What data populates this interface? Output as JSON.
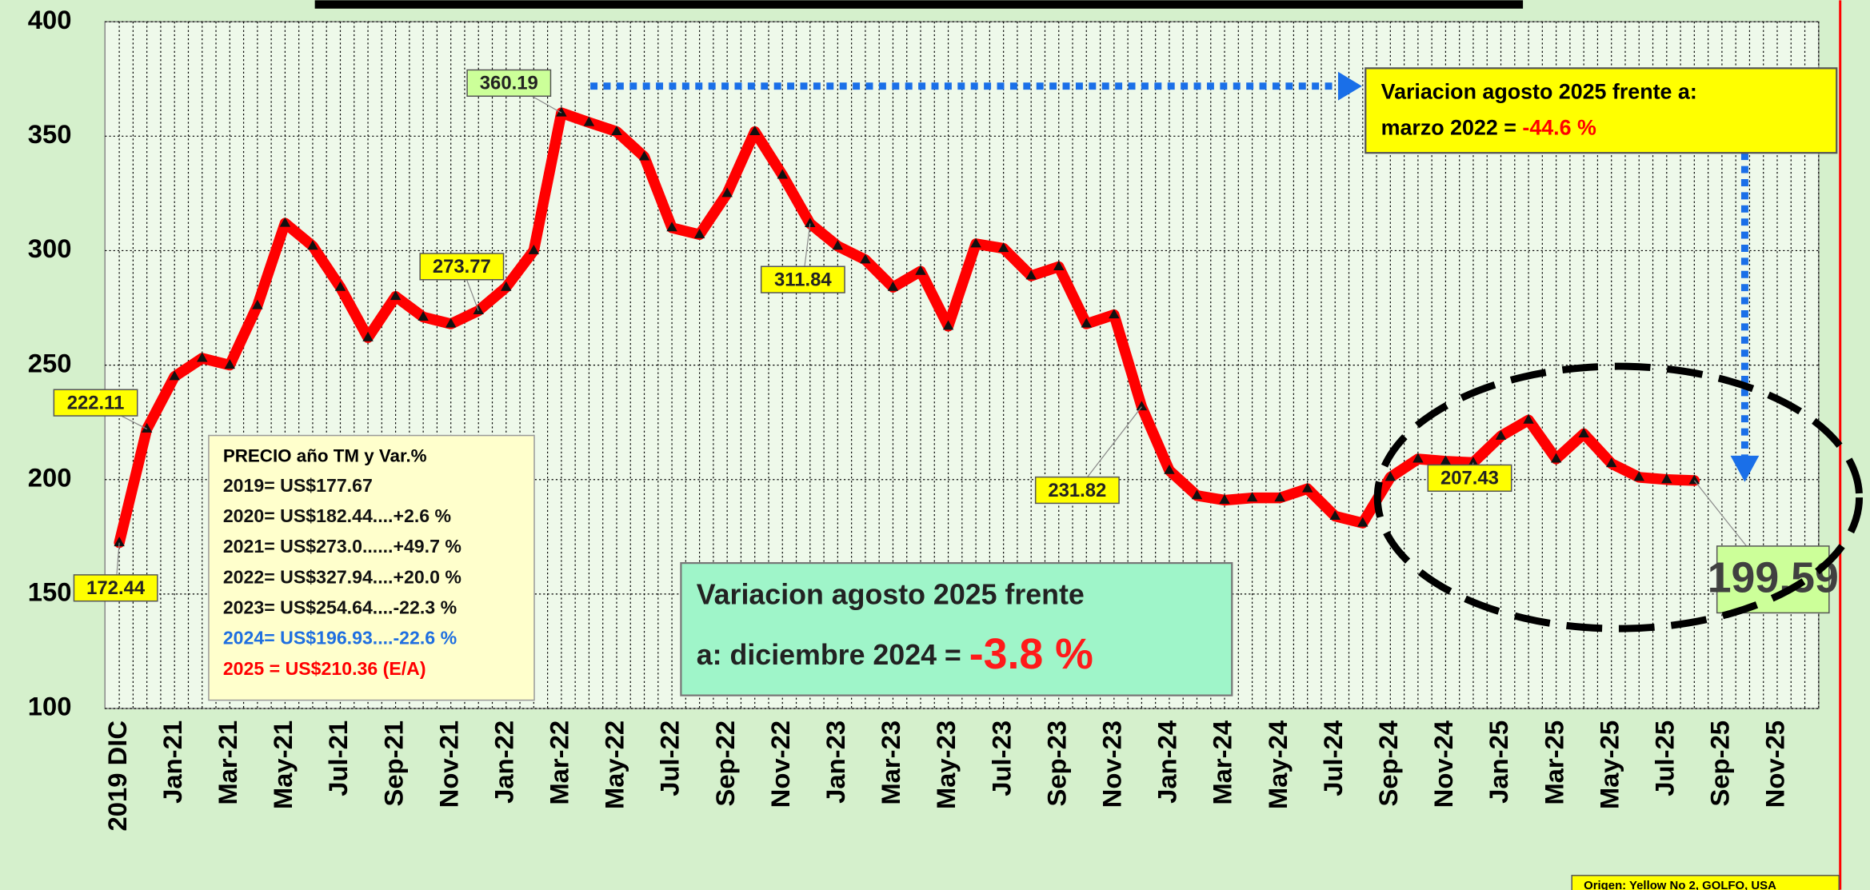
{
  "chart_data": {
    "type": "line",
    "categories": [
      "2019 DIC",
      null,
      "Jan-21",
      null,
      "Mar-21",
      null,
      "May-21",
      null,
      "Jul-21",
      null,
      "Sep-21",
      null,
      "Nov-21",
      null,
      "Jan-22",
      null,
      "Mar-22",
      null,
      "May-22",
      null,
      "Jul-22",
      null,
      "Sep-22",
      null,
      "Nov-22",
      null,
      "Jan-23",
      null,
      "Mar-23",
      null,
      "May-23",
      null,
      "Jul-23",
      null,
      "Sep-23",
      null,
      "Nov-23",
      null,
      "Jan-24",
      null,
      "Mar-24",
      null,
      "May-24",
      null,
      "Jul-24",
      null,
      "Sep-24",
      null,
      "Nov-24",
      null,
      "Jan-25",
      null,
      "Mar-25",
      null,
      "May-25",
      null,
      "Jul-25",
      null,
      "Sep-25",
      null,
      "Nov-25"
    ],
    "series": [
      {
        "color": "#ff0000",
        "values": [
          172.44,
          222.11,
          245,
          253,
          250,
          276,
          312,
          302,
          284,
          262,
          280,
          271,
          268,
          273.77,
          284,
          300,
          360.19,
          356,
          352,
          341,
          310,
          307,
          325,
          352,
          333,
          311.84,
          302,
          296,
          284,
          291,
          267,
          303,
          301,
          289,
          293,
          268,
          272,
          231.82,
          204,
          193,
          191,
          192,
          192,
          196,
          184,
          181,
          201,
          209,
          208,
          207.43,
          219,
          226,
          209,
          220,
          207,
          201,
          200,
          199.59,
          null,
          null,
          null
        ]
      }
    ],
    "labeled_points": [
      0,
      1,
      13,
      16,
      25,
      37,
      49,
      57
    ],
    "ylim": [
      100,
      400
    ],
    "yticks": [
      100,
      150,
      200,
      250,
      300,
      350,
      400
    ],
    "grid": true,
    "price_box": {
      "title": "PRECIO año TM y Var.%",
      "lines": [
        "2019= US$177.67",
        "2020= US$182.44....+2.6 %",
        "2021= US$273.0......+49.7 %",
        "2022= US$327.94....+20.0 %",
        "2023= US$254.64....-22.3 %",
        "2024= US$196.93....-22.6 %",
        "2025 = US$210.36 (E/A)"
      ]
    },
    "annotations": [
      {
        "line1": "Variacion agosto 2025 frente a:",
        "line2": "marzo 2022 = ",
        "change": "-44.6 %"
      },
      {
        "line1": "Variacion agosto 2025 frente",
        "line2": "a: diciembre 2024 = ",
        "change": "-3.8 %"
      }
    ],
    "source": "Origen: Yellow No 2, GOLFO, USA"
  }
}
